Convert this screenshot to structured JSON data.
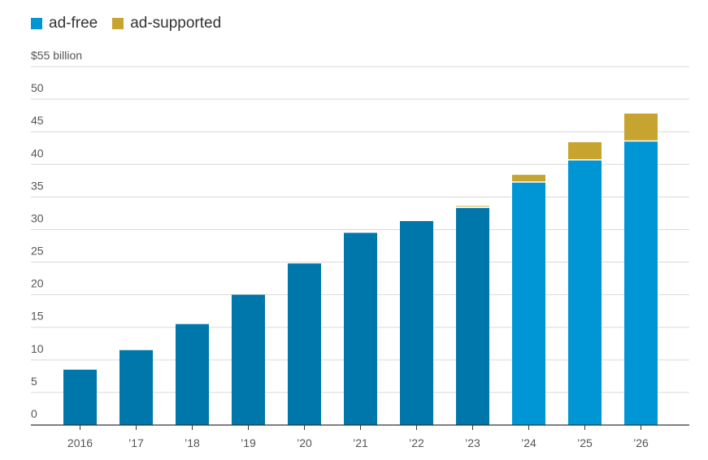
{
  "colors": {
    "ad_free_projected": "#0096d6",
    "ad_free_actual": "#0077aa",
    "ad_supported": "#c6a42f",
    "grid": "#d9d9d9",
    "axis": "#333333"
  },
  "legend": [
    {
      "label": "ad-free",
      "color": "#0096d6"
    },
    {
      "label": "ad-supported",
      "color": "#c6a42f"
    }
  ],
  "chart_data": {
    "type": "bar",
    "stacked": true,
    "title": "",
    "xlabel": "",
    "ylabel": "",
    "ylim": [
      0,
      55
    ],
    "yticks": [
      0,
      5,
      10,
      15,
      20,
      25,
      30,
      35,
      40,
      45,
      50,
      55
    ],
    "ytick_labels": [
      "0",
      "5",
      "10",
      "15",
      "20",
      "25",
      "30",
      "35",
      "40",
      "45",
      "50",
      "$55 billion"
    ],
    "categories": [
      "2016",
      "’17",
      "’18",
      "’19",
      "’20",
      "’21",
      "’22",
      "’23",
      "’24",
      "’25",
      "’26"
    ],
    "series": [
      {
        "name": "ad-free",
        "values": [
          8.5,
          11.5,
          15.5,
          20,
          24.8,
          29.5,
          31.3,
          33.3,
          37.2,
          40.6,
          43.5
        ]
      },
      {
        "name": "ad-supported",
        "values": [
          0,
          0,
          0,
          0,
          0,
          0,
          0,
          0.3,
          1.2,
          2.8,
          4.3
        ]
      }
    ],
    "projected_from": "’24",
    "grid": true,
    "legend_position": "top-left"
  }
}
